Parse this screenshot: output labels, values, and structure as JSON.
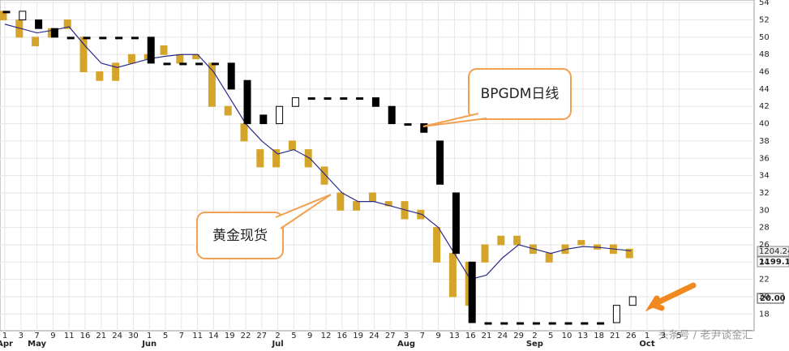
{
  "chart_data": {
    "type": "candlestick",
    "categories": [
      "1",
      "3",
      "7",
      "9",
      "11",
      "16",
      "21",
      "24",
      "30",
      "1",
      "5",
      "7",
      "11",
      "14",
      "19",
      "22",
      "27",
      "2",
      "5",
      "9",
      "12",
      "16",
      "19",
      "24",
      "27",
      "3",
      "7",
      "9",
      "13",
      "16",
      "21",
      "24",
      "29",
      "2",
      "5",
      "10",
      "13",
      "18",
      "21",
      "26",
      "1",
      "3",
      "5"
    ],
    "month_labels": [
      "Apr",
      null,
      "May",
      null,
      null,
      null,
      null,
      null,
      null,
      "Jun",
      null,
      null,
      null,
      null,
      null,
      null,
      null,
      "Jul",
      null,
      null,
      null,
      null,
      null,
      null,
      null,
      "Aug",
      null,
      null,
      null,
      null,
      null,
      null,
      null,
      "Sep",
      null,
      null,
      null,
      null,
      null,
      null,
      "Oct",
      null,
      null
    ],
    "series": [
      {
        "color": "#d4a52a",
        "open": [
          53,
          52,
          49,
          50,
          51,
          50,
          46,
          45,
          47,
          47.5,
          49,
          47,
          47.5,
          47,
          42,
          40,
          37,
          35,
          38,
          37,
          35,
          32,
          30,
          32,
          30.5,
          31,
          30,
          28,
          25,
          19,
          24,
          26,
          27,
          26,
          24,
          25,
          26.5,
          25.5,
          26,
          25.5,
          null,
          null,
          null
        ],
        "close": [
          52,
          50,
          50,
          51,
          52,
          46,
          45,
          47,
          48,
          48,
          48,
          48,
          48,
          42,
          41,
          38,
          35,
          37,
          37,
          35,
          33,
          30,
          31,
          31,
          31,
          29,
          29,
          24,
          20,
          24,
          26,
          27,
          26,
          25,
          25,
          26,
          26,
          26,
          25,
          24.5,
          null,
          null,
          null
        ],
        "ma_color": "#2b2b8c",
        "ma": [
          51.5,
          51,
          50.5,
          50.8,
          51.2,
          49,
          47,
          46.5,
          47,
          47.5,
          47.8,
          48,
          48,
          46,
          43,
          40,
          38,
          36.5,
          37,
          36,
          34,
          32,
          31,
          31,
          30.5,
          30,
          29.5,
          28,
          25,
          22,
          22.5,
          24.5,
          26,
          25.5,
          25,
          25.5,
          25.8,
          25.7,
          25.5,
          25.3,
          null,
          null,
          null
        ]
      },
      {
        "up_color": "#ffffff",
        "down_color": "#000000",
        "flat_color": "#000000",
        "open": [
          53,
          52,
          52,
          51,
          50,
          50,
          50,
          50,
          50,
          50,
          47,
          47,
          47,
          47,
          47,
          45,
          41,
          40,
          42,
          43,
          43,
          43,
          43,
          43,
          42,
          40,
          40,
          38,
          32,
          24,
          17,
          17,
          17,
          17,
          17,
          17,
          17,
          17,
          17,
          19,
          null,
          null,
          null
        ],
        "close": [
          53,
          53,
          51,
          50,
          50,
          50,
          50,
          50,
          50,
          47,
          47,
          47,
          47,
          47,
          44,
          40,
          40,
          42,
          43,
          43,
          43,
          43,
          43,
          42,
          40,
          40,
          39,
          33,
          25,
          17,
          17,
          17,
          17,
          17,
          17,
          17,
          17,
          17,
          19,
          20,
          null,
          null,
          null
        ]
      }
    ],
    "ylim": [
      17,
      54.3
    ],
    "yticks": [
      18,
      20,
      22,
      24,
      26,
      28,
      30,
      32,
      34,
      36,
      38,
      40,
      42,
      44,
      46,
      48,
      50,
      52,
      54
    ],
    "grid": true,
    "price_tags": [
      "1204.24",
      "1199.10",
      "20.00"
    ],
    "annotations": [
      "BPGDM日线",
      "黄金现货"
    ],
    "watermark": "头条号 / 老尹谈金汇"
  }
}
